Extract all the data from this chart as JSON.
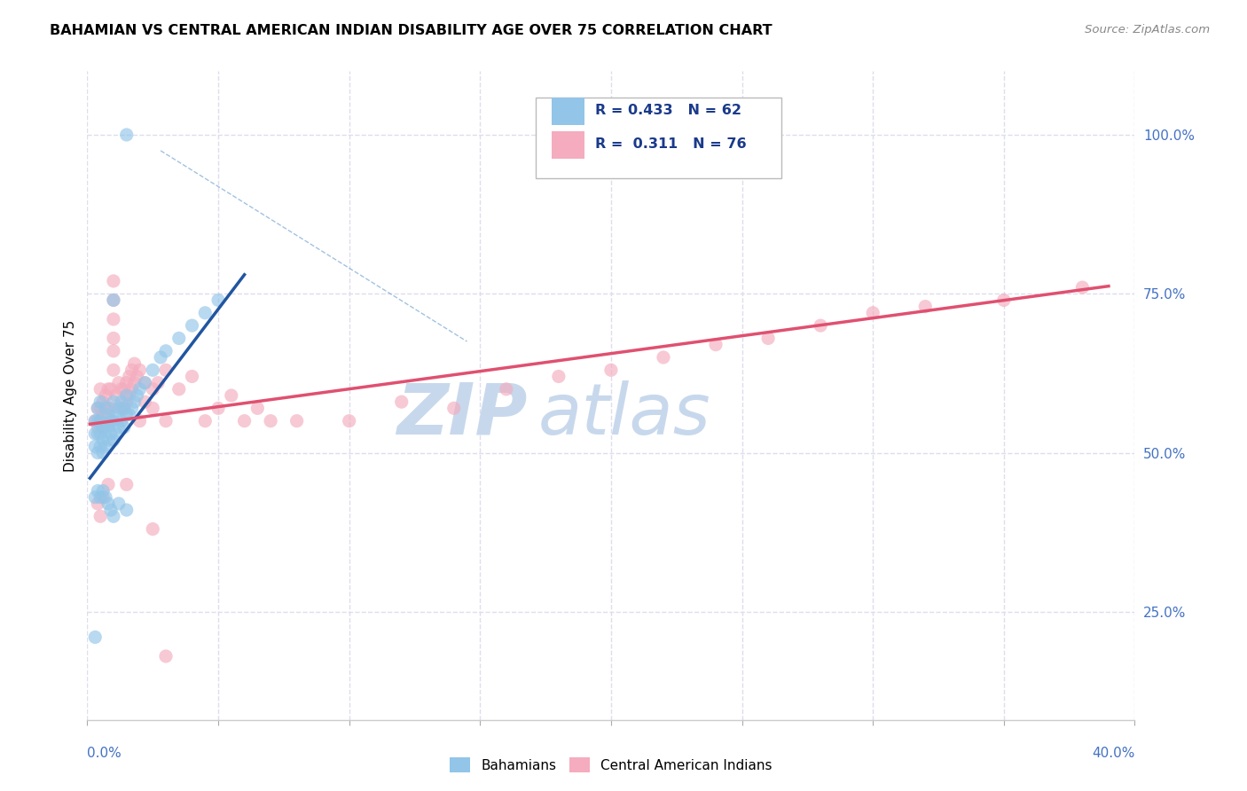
{
  "title": "BAHAMIAN VS CENTRAL AMERICAN INDIAN DISABILITY AGE OVER 75 CORRELATION CHART",
  "source": "Source: ZipAtlas.com",
  "ylabel": "Disability Age Over 75",
  "xlim": [
    0.0,
    0.4
  ],
  "ylim": [
    0.08,
    1.1
  ],
  "xticks": [
    0.0,
    0.05,
    0.1,
    0.15,
    0.2,
    0.25,
    0.3,
    0.35,
    0.4
  ],
  "ytick_positions": [
    0.25,
    0.5,
    0.75,
    1.0
  ],
  "ytick_labels": [
    "25.0%",
    "50.0%",
    "75.0%",
    "100.0%"
  ],
  "r_blue": 0.433,
  "n_blue": 62,
  "r_pink": 0.311,
  "n_pink": 76,
  "blue_color": "#92C5E8",
  "pink_color": "#F4ACBE",
  "blue_outline": "#92C5E8",
  "pink_outline": "#F4ACBE",
  "blue_line_color": "#2155A0",
  "pink_line_color": "#E05070",
  "legend_r_color": "#1A3A8A",
  "watermark_zip": "ZIP",
  "watermark_atlas": "atlas",
  "watermark_color": "#C8D8EC",
  "blue_scatter": [
    [
      0.003,
      0.51
    ],
    [
      0.003,
      0.53
    ],
    [
      0.003,
      0.55
    ],
    [
      0.004,
      0.5
    ],
    [
      0.004,
      0.53
    ],
    [
      0.004,
      0.55
    ],
    [
      0.004,
      0.57
    ],
    [
      0.005,
      0.51
    ],
    [
      0.005,
      0.53
    ],
    [
      0.005,
      0.55
    ],
    [
      0.005,
      0.58
    ],
    [
      0.006,
      0.5
    ],
    [
      0.006,
      0.52
    ],
    [
      0.006,
      0.54
    ],
    [
      0.007,
      0.51
    ],
    [
      0.007,
      0.54
    ],
    [
      0.007,
      0.57
    ],
    [
      0.008,
      0.52
    ],
    [
      0.008,
      0.54
    ],
    [
      0.008,
      0.56
    ],
    [
      0.009,
      0.53
    ],
    [
      0.009,
      0.55
    ],
    [
      0.01,
      0.52
    ],
    [
      0.01,
      0.55
    ],
    [
      0.01,
      0.58
    ],
    [
      0.011,
      0.53
    ],
    [
      0.011,
      0.56
    ],
    [
      0.012,
      0.54
    ],
    [
      0.012,
      0.57
    ],
    [
      0.013,
      0.55
    ],
    [
      0.013,
      0.58
    ],
    [
      0.014,
      0.54
    ],
    [
      0.014,
      0.57
    ],
    [
      0.015,
      0.56
    ],
    [
      0.015,
      0.59
    ],
    [
      0.016,
      0.56
    ],
    [
      0.017,
      0.57
    ],
    [
      0.018,
      0.58
    ],
    [
      0.019,
      0.59
    ],
    [
      0.02,
      0.6
    ],
    [
      0.022,
      0.61
    ],
    [
      0.025,
      0.63
    ],
    [
      0.028,
      0.65
    ],
    [
      0.03,
      0.66
    ],
    [
      0.035,
      0.68
    ],
    [
      0.04,
      0.7
    ],
    [
      0.045,
      0.72
    ],
    [
      0.05,
      0.74
    ],
    [
      0.003,
      0.43
    ],
    [
      0.004,
      0.44
    ],
    [
      0.005,
      0.43
    ],
    [
      0.006,
      0.44
    ],
    [
      0.007,
      0.43
    ],
    [
      0.008,
      0.42
    ],
    [
      0.009,
      0.41
    ],
    [
      0.01,
      0.4
    ],
    [
      0.012,
      0.42
    ],
    [
      0.015,
      0.41
    ],
    [
      0.003,
      0.21
    ],
    [
      0.01,
      0.74
    ],
    [
      0.015,
      1.0
    ]
  ],
  "pink_scatter": [
    [
      0.003,
      0.55
    ],
    [
      0.004,
      0.54
    ],
    [
      0.004,
      0.57
    ],
    [
      0.005,
      0.55
    ],
    [
      0.005,
      0.57
    ],
    [
      0.005,
      0.6
    ],
    [
      0.006,
      0.54
    ],
    [
      0.006,
      0.56
    ],
    [
      0.006,
      0.58
    ],
    [
      0.007,
      0.56
    ],
    [
      0.007,
      0.59
    ],
    [
      0.008,
      0.57
    ],
    [
      0.008,
      0.6
    ],
    [
      0.009,
      0.57
    ],
    [
      0.009,
      0.6
    ],
    [
      0.01,
      0.63
    ],
    [
      0.01,
      0.66
    ],
    [
      0.01,
      0.68
    ],
    [
      0.01,
      0.71
    ],
    [
      0.01,
      0.74
    ],
    [
      0.01,
      0.77
    ],
    [
      0.011,
      0.59
    ],
    [
      0.012,
      0.61
    ],
    [
      0.013,
      0.57
    ],
    [
      0.013,
      0.6
    ],
    [
      0.014,
      0.57
    ],
    [
      0.014,
      0.6
    ],
    [
      0.015,
      0.58
    ],
    [
      0.015,
      0.61
    ],
    [
      0.016,
      0.59
    ],
    [
      0.016,
      0.62
    ],
    [
      0.017,
      0.6
    ],
    [
      0.017,
      0.63
    ],
    [
      0.018,
      0.61
    ],
    [
      0.018,
      0.64
    ],
    [
      0.019,
      0.62
    ],
    [
      0.02,
      0.63
    ],
    [
      0.02,
      0.55
    ],
    [
      0.022,
      0.58
    ],
    [
      0.022,
      0.61
    ],
    [
      0.025,
      0.57
    ],
    [
      0.025,
      0.6
    ],
    [
      0.027,
      0.61
    ],
    [
      0.03,
      0.63
    ],
    [
      0.03,
      0.55
    ],
    [
      0.035,
      0.6
    ],
    [
      0.04,
      0.62
    ],
    [
      0.045,
      0.55
    ],
    [
      0.05,
      0.57
    ],
    [
      0.055,
      0.59
    ],
    [
      0.06,
      0.55
    ],
    [
      0.065,
      0.57
    ],
    [
      0.07,
      0.55
    ],
    [
      0.08,
      0.55
    ],
    [
      0.1,
      0.55
    ],
    [
      0.12,
      0.58
    ],
    [
      0.14,
      0.57
    ],
    [
      0.16,
      0.6
    ],
    [
      0.18,
      0.62
    ],
    [
      0.2,
      0.63
    ],
    [
      0.22,
      0.65
    ],
    [
      0.24,
      0.67
    ],
    [
      0.26,
      0.68
    ],
    [
      0.28,
      0.7
    ],
    [
      0.3,
      0.72
    ],
    [
      0.32,
      0.73
    ],
    [
      0.35,
      0.74
    ],
    [
      0.38,
      0.76
    ],
    [
      0.004,
      0.42
    ],
    [
      0.005,
      0.4
    ],
    [
      0.006,
      0.43
    ],
    [
      0.008,
      0.45
    ],
    [
      0.015,
      0.45
    ],
    [
      0.025,
      0.38
    ],
    [
      0.03,
      0.18
    ]
  ],
  "blue_line_x": [
    0.001,
    0.06
  ],
  "blue_line_y": [
    0.46,
    0.78
  ],
  "pink_line_x": [
    0.001,
    0.39
  ],
  "pink_line_y": [
    0.545,
    0.762
  ],
  "diag_line_x": [
    0.028,
    0.145
  ],
  "diag_line_y": [
    0.975,
    0.675
  ],
  "grid_color": "#DDDDEE"
}
